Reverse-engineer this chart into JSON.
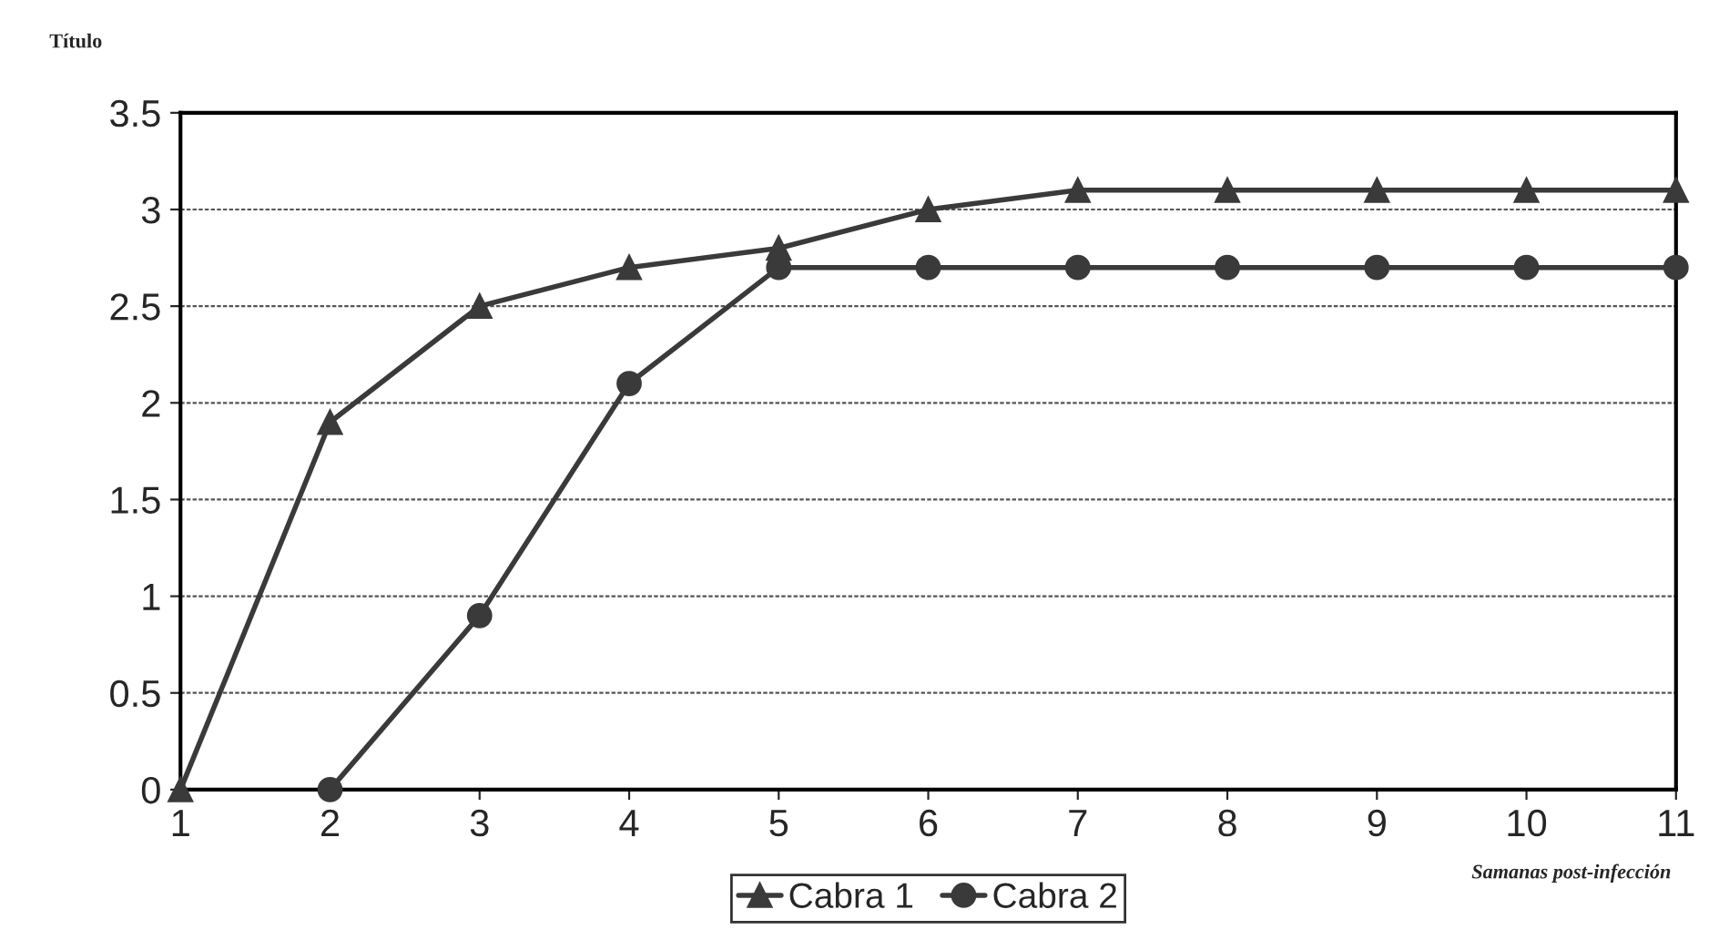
{
  "chart_data": {
    "type": "line",
    "ylabel": "Título",
    "xlabel": "Samanas post-infección",
    "xlim": [
      1,
      11
    ],
    "xticks": [
      1,
      2,
      3,
      4,
      5,
      6,
      7,
      8,
      9,
      10,
      11
    ],
    "ylim": [
      0,
      3.5
    ],
    "yticks": [
      0,
      0.5,
      1,
      1.5,
      2,
      2.5,
      3,
      3.5
    ],
    "grid": "y",
    "legend": "bottom",
    "series": [
      {
        "name": "Cabra 1",
        "color": "#3a3a3a",
        "marker": "triangle",
        "x": [
          1,
          2,
          3,
          4,
          5,
          6,
          7,
          8,
          9,
          10,
          11
        ],
        "values": [
          0,
          1.9,
          2.5,
          2.7,
          2.8,
          3.0,
          3.1,
          3.1,
          3.1,
          3.1,
          3.1
        ]
      },
      {
        "name": "Cabra 2",
        "color": "#3a3a3a",
        "marker": "circle",
        "x": [
          2,
          3,
          4,
          5,
          6,
          7,
          8,
          9,
          10,
          11
        ],
        "values": [
          0,
          0.9,
          2.1,
          2.7,
          2.7,
          2.7,
          2.7,
          2.7,
          2.7,
          2.7
        ]
      }
    ]
  }
}
